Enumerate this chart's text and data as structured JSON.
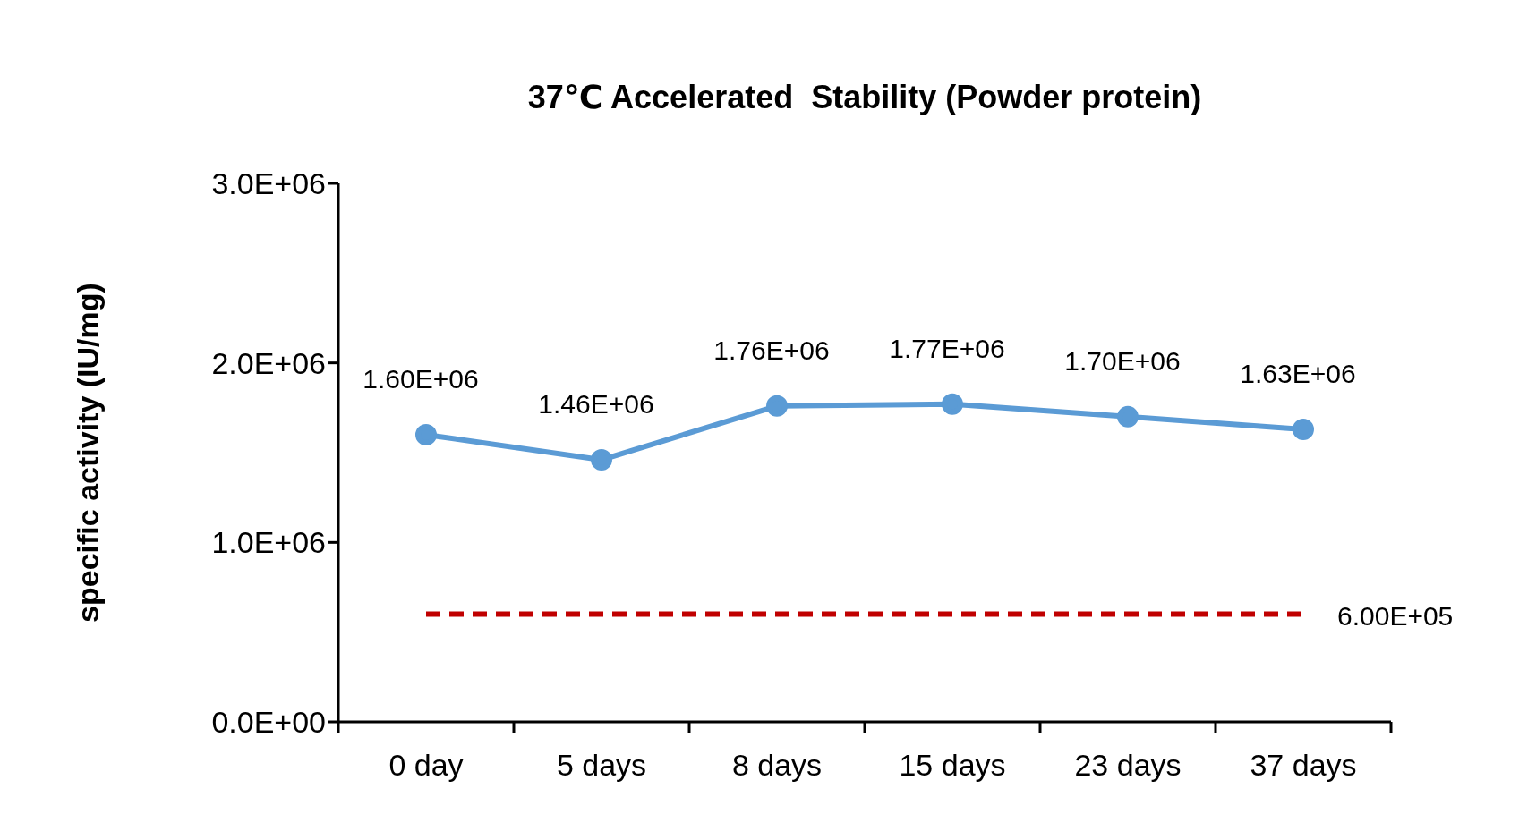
{
  "chart_data": {
    "type": "line",
    "title": "37℃ Accelerated  Stability (Powder protein)",
    "ylabel": "specific activity (IU/mg)",
    "categories": [
      "0 day",
      "5 days",
      "8 days",
      "15 days",
      "23 days",
      "37 days"
    ],
    "series": [
      {
        "color": "#5b9bd5",
        "marker": "circle",
        "line_style": "solid",
        "values": [
          1600000,
          1460000,
          1760000,
          1770000,
          1700000,
          1630000
        ],
        "value_labels": [
          "1.60E+06",
          "1.46E+06",
          "1.76E+06",
          "1.77E+06",
          "1.70E+06",
          "1.63E+06"
        ]
      },
      {
        "color": "#c00000",
        "marker": "none",
        "line_style": "dashed",
        "values": [
          600000,
          600000,
          600000,
          600000,
          600000,
          600000
        ],
        "value_labels": [
          null,
          null,
          null,
          null,
          null,
          "6.00E+05"
        ]
      }
    ],
    "ylim": [
      0,
      3000000
    ],
    "yticks": [
      {
        "value": 0,
        "label": "0.0E+00"
      },
      {
        "value": 1000000,
        "label": "1.0E+06"
      },
      {
        "value": 2000000,
        "label": "2.0E+06"
      },
      {
        "value": 3000000,
        "label": "3.0E+06"
      }
    ],
    "grid": false,
    "legend": false
  }
}
